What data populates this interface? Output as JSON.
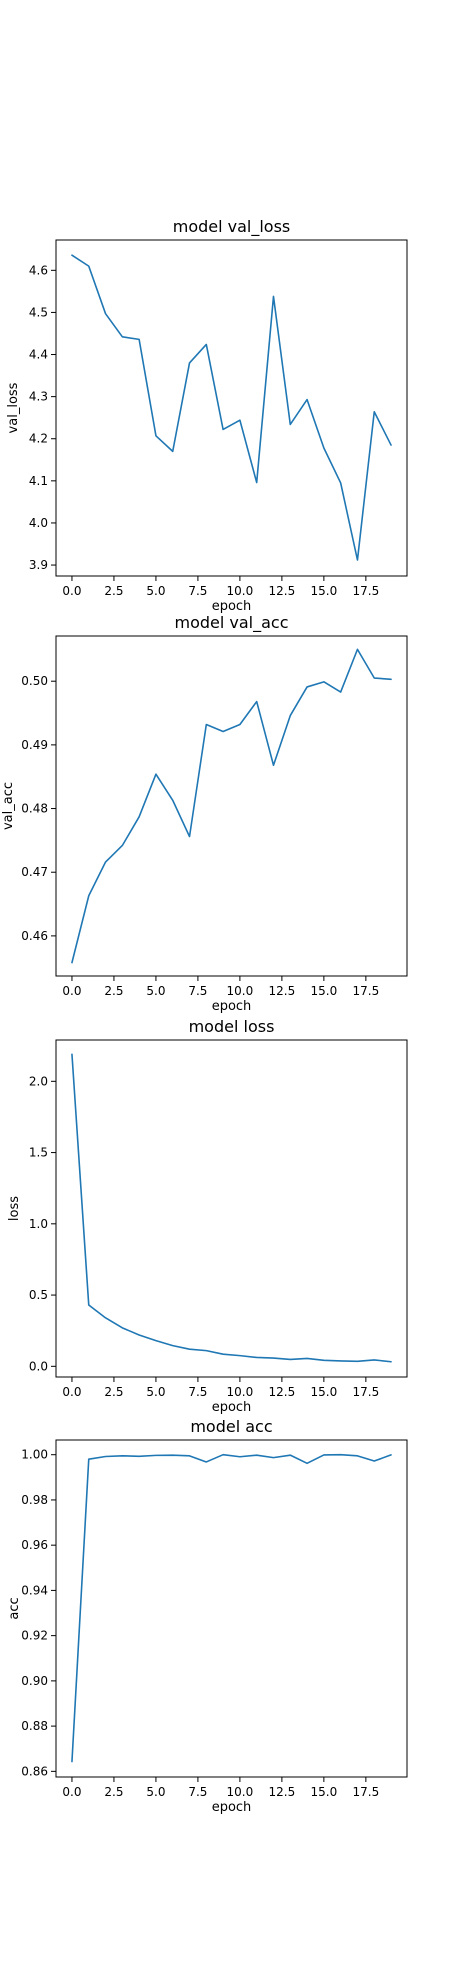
{
  "line_color": "#1f77b4",
  "chart_data": [
    {
      "type": "line",
      "title": "model val_loss",
      "xlabel": "epoch",
      "ylabel": "val_loss",
      "xlim": [
        -0.95,
        19.95
      ],
      "ylim": [
        3.874,
        4.672
      ],
      "xticks": [
        0.0,
        2.5,
        5.0,
        7.5,
        10.0,
        12.5,
        15.0,
        17.5
      ],
      "xtick_labels": [
        "0.0",
        "2.5",
        "5.0",
        "7.5",
        "10.0",
        "12.5",
        "15.0",
        "17.5"
      ],
      "yticks": [
        3.9,
        4.0,
        4.1,
        4.2,
        4.3,
        4.4,
        4.5,
        4.6
      ],
      "ytick_labels": [
        "3.9",
        "4.0",
        "4.1",
        "4.2",
        "4.3",
        "4.4",
        "4.5",
        "4.6"
      ],
      "x": [
        0,
        1,
        2,
        3,
        4,
        5,
        6,
        7,
        8,
        9,
        10,
        11,
        12,
        13,
        14,
        15,
        16,
        17,
        18,
        19
      ],
      "series": [
        {
          "values": [
            4.636,
            4.61,
            4.497,
            4.442,
            4.436,
            4.207,
            4.17,
            4.38,
            4.424,
            4.222,
            4.244,
            4.096,
            4.538,
            4.234,
            4.293,
            4.178,
            4.095,
            3.912,
            4.264,
            4.185
          ]
        }
      ]
    },
    {
      "type": "line",
      "title": "model val_acc",
      "xlabel": "epoch",
      "ylabel": "val_acc",
      "xlim": [
        -0.95,
        19.95
      ],
      "ylim": [
        0.4537,
        0.5071
      ],
      "xticks": [
        0.0,
        2.5,
        5.0,
        7.5,
        10.0,
        12.5,
        15.0,
        17.5
      ],
      "xtick_labels": [
        "0.0",
        "2.5",
        "5.0",
        "7.5",
        "10.0",
        "12.5",
        "15.0",
        "17.5"
      ],
      "yticks": [
        0.46,
        0.47,
        0.48,
        0.49,
        0.5
      ],
      "ytick_labels": [
        "0.46",
        "0.47",
        "0.48",
        "0.49",
        "0.50"
      ],
      "x": [
        0,
        1,
        2,
        3,
        4,
        5,
        6,
        7,
        8,
        9,
        10,
        11,
        12,
        13,
        14,
        15,
        16,
        17,
        18,
        19
      ],
      "series": [
        {
          "values": [
            0.4558,
            0.4663,
            0.4716,
            0.4742,
            0.4787,
            0.4854,
            0.4813,
            0.4756,
            0.4932,
            0.4921,
            0.4932,
            0.4968,
            0.4868,
            0.4946,
            0.4991,
            0.4999,
            0.4983,
            0.505,
            0.5005,
            0.5003
          ]
        }
      ]
    },
    {
      "type": "line",
      "title": "model loss",
      "xlabel": "epoch",
      "ylabel": "loss",
      "xlim": [
        -0.95,
        19.95
      ],
      "ylim": [
        -0.075,
        2.29
      ],
      "xticks": [
        0.0,
        2.5,
        5.0,
        7.5,
        10.0,
        12.5,
        15.0,
        17.5
      ],
      "xtick_labels": [
        "0.0",
        "2.5",
        "5.0",
        "7.5",
        "10.0",
        "12.5",
        "15.0",
        "17.5"
      ],
      "yticks": [
        0.0,
        0.5,
        1.0,
        1.5,
        2.0
      ],
      "ytick_labels": [
        "0.0",
        "0.5",
        "1.0",
        "1.5",
        "2.0"
      ],
      "x": [
        0,
        1,
        2,
        3,
        4,
        5,
        6,
        7,
        8,
        9,
        10,
        11,
        12,
        13,
        14,
        15,
        16,
        17,
        18,
        19
      ],
      "series": [
        {
          "values": [
            2.19,
            0.43,
            0.34,
            0.27,
            0.22,
            0.18,
            0.145,
            0.12,
            0.11,
            0.085,
            0.075,
            0.062,
            0.058,
            0.048,
            0.055,
            0.042,
            0.038,
            0.035,
            0.045,
            0.032
          ]
        }
      ]
    },
    {
      "type": "line",
      "title": "model acc",
      "xlabel": "epoch",
      "ylabel": "acc",
      "xlim": [
        -0.95,
        19.95
      ],
      "ylim": [
        0.8575,
        1.0065
      ],
      "xticks": [
        0.0,
        2.5,
        5.0,
        7.5,
        10.0,
        12.5,
        15.0,
        17.5
      ],
      "xtick_labels": [
        "0.0",
        "2.5",
        "5.0",
        "7.5",
        "10.0",
        "12.5",
        "15.0",
        "17.5"
      ],
      "yticks": [
        0.86,
        0.88,
        0.9,
        0.92,
        0.94,
        0.96,
        0.98,
        1.0
      ],
      "ytick_labels": [
        "0.86",
        "0.88",
        "0.90",
        "0.92",
        "0.94",
        "0.96",
        "0.98",
        "1.00"
      ],
      "x": [
        0,
        1,
        2,
        3,
        4,
        5,
        6,
        7,
        8,
        9,
        10,
        11,
        12,
        13,
        14,
        15,
        16,
        17,
        18,
        19
      ],
      "series": [
        {
          "values": [
            0.8643,
            0.998,
            0.9992,
            0.9995,
            0.9993,
            0.9997,
            0.9998,
            0.9995,
            0.9968,
            1.0,
            0.9991,
            0.9998,
            0.9987,
            0.9998,
            0.9962,
            0.9999,
            1.0,
            0.9995,
            0.9972,
            0.9999
          ]
        }
      ]
    }
  ]
}
